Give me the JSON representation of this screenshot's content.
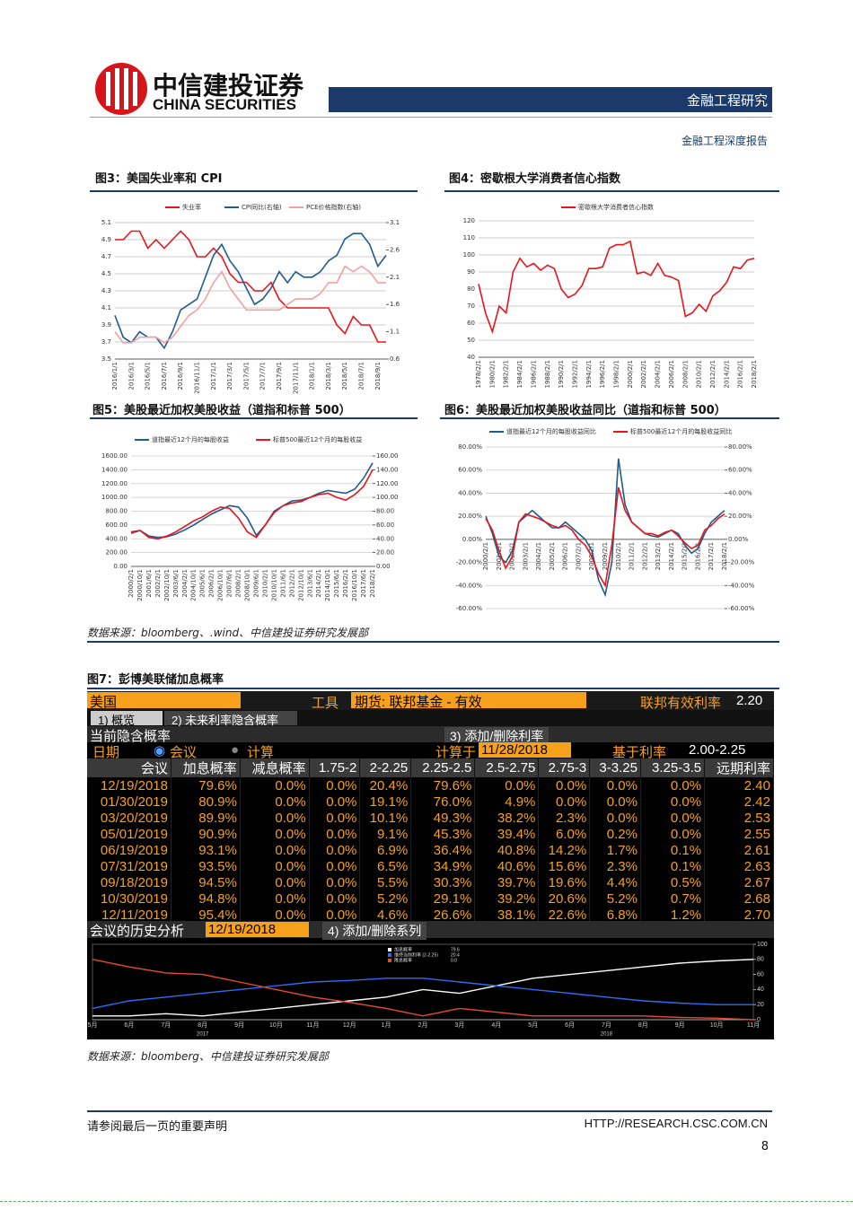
{
  "header": {
    "company": "中信建投证券",
    "company_en": "CHINA SECURITIES",
    "section": "金融工程研究",
    "report_type": "金融工程深度报告"
  },
  "figures": [
    "图3：美国失业率和 CPI",
    "图4：密歇根大学消费者信心指数",
    "图5：美股最近加权美股收益（道指和标普 500）",
    "图6：美股最近加权美股收益同比（道指和标普 500）",
    "图7：彭博美联储加息概率"
  ],
  "sources": [
    "数据来源：bloomberg、.wind、中信建投证券研究发展部",
    "数据来源：bloomberg、中信建投证券研究发展部"
  ],
  "chart_data": [
    {
      "type": "line",
      "categories": [
        "2016/1/1",
        null,
        "2016/3/1",
        null,
        "2016/5/1",
        null,
        "2016/7/1",
        null,
        "2016/9/1",
        null,
        "2016/11/1",
        null,
        "2017/1/1",
        null,
        "2017/3/1",
        null,
        "2017/5/1",
        null,
        "2017/7/1",
        null,
        "2017/9/1",
        null,
        "2017/11/1",
        null,
        "2018/1/1",
        null,
        "2018/3/1",
        null,
        "2018/5/1",
        null,
        "2018/7/1",
        null,
        "2018/9/1",
        null
      ],
      "series": [
        {
          "name": "失业率",
          "color": "#e8141c",
          "values": [
            4.9,
            4.9,
            5.0,
            5.0,
            4.8,
            4.9,
            4.8,
            4.9,
            5.0,
            4.9,
            4.7,
            4.7,
            4.8,
            4.7,
            4.5,
            4.4,
            4.4,
            4.3,
            4.3,
            4.4,
            4.2,
            4.1,
            4.1,
            4.1,
            4.1,
            4.1,
            4.1,
            3.9,
            3.8,
            4.0,
            3.9,
            3.9,
            3.7,
            3.7
          ]
        },
        {
          "name": "CPI同比(右轴)",
          "color": "#1f5c8c",
          "axis": "y2",
          "values": [
            1.4,
            1.0,
            0.9,
            1.1,
            1.0,
            1.0,
            0.8,
            1.1,
            1.5,
            1.6,
            1.7,
            2.1,
            2.5,
            2.7,
            2.4,
            2.2,
            1.9,
            1.6,
            1.7,
            1.9,
            2.2,
            2.0,
            2.2,
            2.1,
            2.1,
            2.2,
            2.4,
            2.5,
            2.8,
            2.9,
            2.9,
            2.7,
            2.3,
            2.5
          ]
        },
        {
          "name": "PCE价格指数(右轴)",
          "color": "#f4a0a0",
          "axis": "y2",
          "values": [
            1.1,
            0.9,
            0.9,
            1.0,
            1.0,
            1.0,
            0.9,
            1.0,
            1.2,
            1.4,
            1.5,
            1.7,
            2.0,
            2.2,
            1.9,
            1.7,
            1.5,
            1.5,
            1.5,
            1.5,
            1.5,
            1.6,
            1.7,
            1.7,
            1.7,
            1.8,
            2.0,
            2.0,
            2.3,
            2.2,
            2.3,
            2.2,
            2.0,
            2.0
          ]
        }
      ],
      "ylim": [
        3.5,
        5.1
      ],
      "yticks": [
        3.5,
        3.7,
        3.9,
        4.1,
        4.3,
        4.5,
        4.7,
        4.9,
        5.1
      ],
      "y2lim": [
        0.6,
        3.1
      ],
      "y2ticks": [
        0.6,
        1.1,
        1.6,
        2.1,
        2.6,
        3.1
      ],
      "grid": true
    },
    {
      "type": "line",
      "categories": [
        "1978/2/1",
        null,
        "1980/2/1",
        null,
        "1982/2/1",
        null,
        "1984/2/1",
        null,
        "1986/2/1",
        null,
        "1988/2/1",
        null,
        "1990/2/1",
        null,
        "1992/2/1",
        null,
        "1994/2/1",
        null,
        "1996/2/1",
        null,
        "1998/2/1",
        null,
        "2000/2/1",
        null,
        "2002/2/1",
        null,
        "2004/2/1",
        null,
        "2006/2/1",
        null,
        "2008/2/1",
        null,
        "2010/2/1",
        null,
        "2012/2/1",
        null,
        "2014/2/1",
        null,
        "2016/2/1",
        null,
        "2018/2/1"
      ],
      "series": [
        {
          "name": "密歇根大学消费者信心指数",
          "color": "#e8141c",
          "values": [
            83,
            66,
            55,
            70,
            66,
            90,
            98,
            93,
            95,
            91,
            94,
            92,
            80,
            75,
            77,
            82,
            92,
            92,
            93,
            104,
            106,
            106,
            108,
            89,
            90,
            88,
            95,
            88,
            87,
            85,
            64,
            66,
            71,
            67,
            76,
            79,
            84,
            93,
            92,
            97,
            98
          ]
        }
      ],
      "ylim": [
        40,
        120
      ],
      "yticks": [
        40,
        50,
        60,
        70,
        80,
        90,
        100,
        110,
        120
      ],
      "grid": true
    },
    {
      "type": "line",
      "categories": [
        "2000/2/1",
        "2000/10/1",
        "2001/6/1",
        "2002/2/1",
        "2002/10/1",
        "2003/6/1",
        "2004/2/1",
        "2004/10/1",
        "2005/6/1",
        "2006/2/1",
        "2006/10/1",
        "2007/6/1",
        "2008/2/1",
        "2008/10/1",
        "2009/6/1",
        "2010/2/1",
        "2010/10/1",
        "2011/6/1",
        "2012/2/1",
        "2012/10/1",
        "2013/6/1",
        "2014/2/1",
        "2014/10/1",
        "2015/6/1",
        "2016/2/1",
        "2016/10/1",
        "2017/6/1",
        "2018/2/1"
      ],
      "series": [
        {
          "name": "道指最近12个月的每股收益",
          "color": "#1f5c8c",
          "values": [
            480,
            520,
            440,
            420,
            430,
            470,
            530,
            600,
            680,
            760,
            820,
            880,
            860,
            700,
            450,
            600,
            800,
            880,
            950,
            960,
            1000,
            1060,
            1100,
            1080,
            1060,
            1120,
            1280,
            1500
          ]
        },
        {
          "name": "标普500最近12个月的每股收益",
          "color": "#e8141c",
          "axis": "y2",
          "values": [
            50,
            52,
            42,
            40,
            44,
            50,
            58,
            66,
            72,
            80,
            86,
            84,
            70,
            50,
            42,
            60,
            78,
            88,
            92,
            94,
            100,
            104,
            106,
            100,
            96,
            104,
            116,
            140
          ]
        }
      ],
      "ylim": [
        0,
        1600
      ],
      "yticks": [
        {
          "value": 0,
          "label": "0.00"
        },
        {
          "value": 200,
          "label": "200.00"
        },
        {
          "value": 400,
          "label": "400.00"
        },
        {
          "value": 600,
          "label": "600.00"
        },
        {
          "value": 800,
          "label": "800.00"
        },
        {
          "value": 1000,
          "label": "1000.00"
        },
        {
          "value": 1200,
          "label": "1200.00"
        },
        {
          "value": 1400,
          "label": "1400.00"
        },
        {
          "value": 1600,
          "label": "1600.00"
        }
      ],
      "y2lim": [
        0,
        160
      ],
      "y2ticks": [
        {
          "value": 0,
          "label": "0.00"
        },
        {
          "value": 20,
          "label": "20.00"
        },
        {
          "value": 40,
          "label": "40.00"
        },
        {
          "value": 60,
          "label": "60.00"
        },
        {
          "value": 80,
          "label": "80.00"
        },
        {
          "value": 100,
          "label": "100.00"
        },
        {
          "value": 120,
          "label": "120.00"
        },
        {
          "value": 140,
          "label": "140.00"
        },
        {
          "value": 160,
          "label": "160.00"
        }
      ],
      "grid": true
    },
    {
      "type": "line",
      "categories": [
        "2000/2/1",
        null,
        "2001/2/1",
        null,
        "2002/2/1",
        null,
        "2003/2/1",
        null,
        "2004/2/1",
        null,
        "2005/2/1",
        null,
        "2006/2/1",
        null,
        "2007/2/1",
        null,
        "2008/2/1",
        null,
        "2009/2/1",
        null,
        "2010/2/1",
        null,
        "2011/2/1",
        null,
        "2012/2/1",
        null,
        "2013/2/1",
        null,
        "2014/2/1",
        null,
        "2015/2/1",
        null,
        "2016/2/1",
        null,
        "2017/2/1",
        null,
        "2018/2/1"
      ],
      "series": [
        {
          "name": "道指最近12个月的每股收益同比",
          "color": "#1f5c8c",
          "values": [
            20,
            5,
            -15,
            -20,
            -10,
            15,
            20,
            25,
            20,
            15,
            10,
            10,
            15,
            10,
            5,
            0,
            -10,
            -35,
            -48,
            -20,
            70,
            30,
            15,
            10,
            5,
            3,
            2,
            5,
            8,
            5,
            -5,
            -12,
            -8,
            5,
            15,
            20,
            25
          ]
        },
        {
          "name": "标普500最近12个月的每股收益同比",
          "color": "#e8141c",
          "values": [
            18,
            8,
            -10,
            -25,
            -15,
            15,
            22,
            20,
            18,
            15,
            12,
            10,
            12,
            8,
            0,
            -5,
            -15,
            -30,
            -40,
            -5,
            45,
            25,
            15,
            10,
            5,
            5,
            3,
            6,
            8,
            3,
            -3,
            -8,
            -5,
            8,
            12,
            18,
            22
          ]
        }
      ],
      "ylim": [
        -60,
        80
      ],
      "yticks": [
        {
          "value": -60,
          "label": "-60.00%"
        },
        {
          "value": -40,
          "label": "-40.00%"
        },
        {
          "value": -20,
          "label": "-20.00%"
        },
        {
          "value": 0,
          "label": "0.00%"
        },
        {
          "value": 20,
          "label": "20.00%"
        },
        {
          "value": 40,
          "label": "40.00%"
        },
        {
          "value": 60,
          "label": "60.00%"
        },
        {
          "value": 80,
          "label": "80.00%"
        }
      ],
      "y2lim": [
        -60,
        80
      ],
      "y2ticks": [
        {
          "value": -60,
          "label": "-60.00%"
        },
        {
          "value": -40,
          "label": "-40.00%"
        },
        {
          "value": -20,
          "label": "-20.00%"
        },
        {
          "value": 0,
          "label": "0.00%"
        },
        {
          "value": 20,
          "label": "20.00%"
        },
        {
          "value": 40,
          "label": "40.00%"
        },
        {
          "value": 60,
          "label": "60.00%"
        },
        {
          "value": 80,
          "label": "80.00%"
        }
      ],
      "grid": true
    },
    {
      "type": "line",
      "categories": [
        "5月",
        "6月",
        "7月",
        "8月",
        "9月",
        "10月",
        "11月",
        "12月",
        "1月",
        "2月",
        "3月",
        "4月",
        "5月",
        "6月",
        "7月",
        "8月",
        "9月",
        "10月",
        "11月"
      ],
      "year_labels": [
        "2017",
        "2018"
      ],
      "series": [
        {
          "name": "加息概率",
          "color": "#ffffff",
          "values": [
            5,
            5,
            8,
            5,
            10,
            15,
            20,
            25,
            30,
            40,
            35,
            45,
            55,
            60,
            65,
            70,
            75,
            78,
            80
          ]
        },
        {
          "name": "维持当前利率 (2-2.25)",
          "color": "#2a6df4",
          "values": [
            15,
            25,
            30,
            35,
            40,
            45,
            50,
            52,
            55,
            55,
            50,
            45,
            40,
            35,
            30,
            25,
            22,
            20,
            20
          ]
        },
        {
          "name": "降息概率",
          "color": "#e84a2e",
          "values": [
            80,
            70,
            62,
            60,
            50,
            40,
            30,
            23,
            15,
            5,
            15,
            10,
            5,
            5,
            5,
            5,
            3,
            2,
            0
          ]
        }
      ],
      "legend_values": [
        "79.6",
        "20.4",
        "0.0"
      ],
      "y2lim": [
        0,
        100
      ],
      "y2ticks": [
        0,
        20,
        40,
        60,
        80,
        100
      ],
      "grid": false
    }
  ],
  "bloomberg": {
    "country": "美国",
    "tool": "工具",
    "instrument": "期货: 联邦基金 - 有效",
    "rate_label": "联邦有效利率",
    "rate": "2.20",
    "tabs": [
      "1) 概览",
      "2) 未来利率隐含概率"
    ],
    "section": "当前隐含概率",
    "add_rate": "3) 添加/删除利率",
    "date_label": "日期",
    "opt_meeting": "会议",
    "opt_calc": "计算",
    "calc_on": "计算于",
    "calc_date": "11/28/2018",
    "base_label": "基于利率",
    "base_rate": "2.00-2.25",
    "history_label": "会议的历史分析",
    "history_date": "12/19/2018",
    "add_series": "4) 添加/删除系列"
  },
  "table": {
    "header": [
      "会议",
      "加息概率",
      "减息概率",
      "1.75-2",
      "2-2.25",
      "2.25-2.5",
      "2.5-2.75",
      "2.75-3",
      "3-3.25",
      "3.25-3.5",
      "远期利率"
    ],
    "rows": [
      [
        "12/19/2018",
        "79.6%",
        "0.0%",
        "0.0%",
        "20.4%",
        "79.6%",
        "0.0%",
        "0.0%",
        "0.0%",
        "0.0%",
        "2.40"
      ],
      [
        "01/30/2019",
        "80.9%",
        "0.0%",
        "0.0%",
        "19.1%",
        "76.0%",
        "4.9%",
        "0.0%",
        "0.0%",
        "0.0%",
        "2.42"
      ],
      [
        "03/20/2019",
        "89.9%",
        "0.0%",
        "0.0%",
        "10.1%",
        "49.3%",
        "38.2%",
        "2.3%",
        "0.0%",
        "0.0%",
        "2.53"
      ],
      [
        "05/01/2019",
        "90.9%",
        "0.0%",
        "0.0%",
        "9.1%",
        "45.3%",
        "39.4%",
        "6.0%",
        "0.2%",
        "0.0%",
        "2.55"
      ],
      [
        "06/19/2019",
        "93.1%",
        "0.0%",
        "0.0%",
        "6.9%",
        "36.4%",
        "40.8%",
        "14.2%",
        "1.7%",
        "0.1%",
        "2.61"
      ],
      [
        "07/31/2019",
        "93.5%",
        "0.0%",
        "0.0%",
        "6.5%",
        "34.9%",
        "40.6%",
        "15.6%",
        "2.3%",
        "0.1%",
        "2.63"
      ],
      [
        "09/18/2019",
        "94.5%",
        "0.0%",
        "0.0%",
        "5.5%",
        "30.3%",
        "39.7%",
        "19.6%",
        "4.4%",
        "0.5%",
        "2.67"
      ],
      [
        "10/30/2019",
        "94.8%",
        "0.0%",
        "0.0%",
        "5.2%",
        "29.1%",
        "39.2%",
        "20.6%",
        "5.2%",
        "0.7%",
        "2.68"
      ],
      [
        "12/11/2019",
        "95.4%",
        "0.0%",
        "0.0%",
        "4.6%",
        "26.6%",
        "38.1%",
        "22.6%",
        "6.8%",
        "1.2%",
        "2.70"
      ]
    ]
  },
  "footer": {
    "disclaimer": "请参阅最后一页的重要声明",
    "url": "HTTP://RESEARCH.CSC.COM.CN",
    "page": 8
  }
}
